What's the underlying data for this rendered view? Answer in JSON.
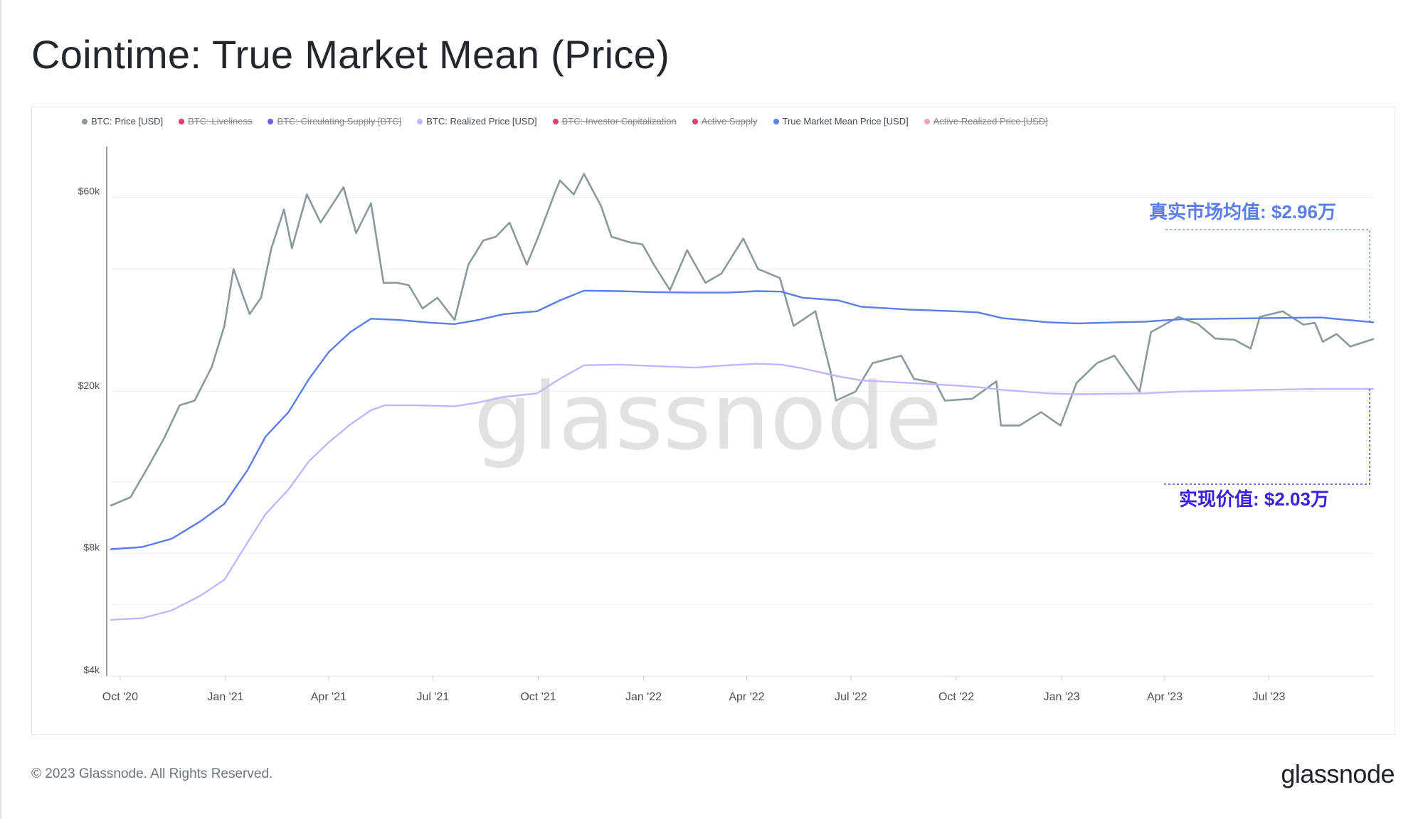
{
  "title": "Cointime: True Market Mean (Price)",
  "footer": {
    "copyright": "© 2023 Glassnode. All Rights Reserved.",
    "logo": "glassnode"
  },
  "watermark": "glassnode",
  "legend": [
    {
      "label": "BTC: Price [USD]",
      "color": "#8a9a9b",
      "active": true
    },
    {
      "label": "BTC: Liveliness",
      "color": "#e0415f",
      "active": false
    },
    {
      "label": "BTC: Circulating Supply [BTC]",
      "color": "#6b5ce7",
      "active": false
    },
    {
      "label": "BTC: Realized Price [USD]",
      "color": "#c4b5fd",
      "active": true
    },
    {
      "label": "BTC: Investor Capitalization",
      "color": "#e0415f",
      "active": false
    },
    {
      "label": "Active Supply",
      "color": "#e0415f",
      "active": false
    },
    {
      "label": "True Market Mean Price [USD]",
      "color": "#5b7ee6",
      "active": true
    },
    {
      "label": "Active Realized Price [USD]",
      "color": "#f4a3b5",
      "active": false
    }
  ],
  "annotations": {
    "tmm": {
      "text": "真实市场均值: $2.96万",
      "color": "#5b7ee6"
    },
    "realized": {
      "text": "实现价值: $2.03万",
      "color": "#3a1fe0"
    }
  },
  "chart_data": {
    "type": "line",
    "y_scale": "log",
    "ylim": [
      4000,
      80000
    ],
    "y_ticks": [
      {
        "value": 60000,
        "label": "$60k"
      },
      {
        "value": 20000,
        "label": "$20k"
      },
      {
        "value": 8000,
        "label": "$8k"
      },
      {
        "value": 4000,
        "label": "$4k"
      }
    ],
    "x_range": [
      "2020-09-23",
      "2023-09-30"
    ],
    "x_ticks": [
      {
        "date": "2020-10-01",
        "label": "Oct '20"
      },
      {
        "date": "2021-01-01",
        "label": "Jan '21"
      },
      {
        "date": "2021-04-01",
        "label": "Apr '21"
      },
      {
        "date": "2021-07-01",
        "label": "Jul '21"
      },
      {
        "date": "2021-10-01",
        "label": "Oct '21"
      },
      {
        "date": "2022-01-01",
        "label": "Jan '22"
      },
      {
        "date": "2022-04-01",
        "label": "Apr '22"
      },
      {
        "date": "2022-07-01",
        "label": "Jul '22"
      },
      {
        "date": "2022-10-01",
        "label": "Oct '22"
      },
      {
        "date": "2023-01-01",
        "label": "Jan '23"
      },
      {
        "date": "2023-04-01",
        "label": "Apr '23"
      },
      {
        "date": "2023-07-01",
        "label": "Jul '23"
      }
    ],
    "series": [
      {
        "name": "BTC: Price [USD]",
        "color": "#8a9a9b",
        "points": [
          [
            "2020-09-23",
            10500
          ],
          [
            "2020-10-10",
            11000
          ],
          [
            "2020-10-25",
            13000
          ],
          [
            "2020-11-08",
            15300
          ],
          [
            "2020-11-22",
            18500
          ],
          [
            "2020-12-05",
            19000
          ],
          [
            "2020-12-20",
            23000
          ],
          [
            "2020-12-31",
            29000
          ],
          [
            "2021-01-08",
            40000
          ],
          [
            "2021-01-22",
            31000
          ],
          [
            "2021-02-01",
            34000
          ],
          [
            "2021-02-10",
            45000
          ],
          [
            "2021-02-21",
            56000
          ],
          [
            "2021-02-28",
            45000
          ],
          [
            "2021-03-13",
            61000
          ],
          [
            "2021-03-25",
            52000
          ],
          [
            "2021-04-14",
            63500
          ],
          [
            "2021-04-25",
            49000
          ],
          [
            "2021-05-08",
            58000
          ],
          [
            "2021-05-19",
            37000
          ],
          [
            "2021-05-31",
            37000
          ],
          [
            "2021-06-10",
            36500
          ],
          [
            "2021-06-22",
            32000
          ],
          [
            "2021-07-05",
            34000
          ],
          [
            "2021-07-20",
            30000
          ],
          [
            "2021-08-01",
            41000
          ],
          [
            "2021-08-14",
            47000
          ],
          [
            "2021-08-25",
            48000
          ],
          [
            "2021-09-06",
            52000
          ],
          [
            "2021-09-21",
            41000
          ],
          [
            "2021-10-01",
            48000
          ],
          [
            "2021-10-15",
            61000
          ],
          [
            "2021-10-20",
            66000
          ],
          [
            "2021-11-01",
            61000
          ],
          [
            "2021-11-10",
            68500
          ],
          [
            "2021-11-25",
            57000
          ],
          [
            "2021-12-04",
            48000
          ],
          [
            "2021-12-20",
            46500
          ],
          [
            "2021-12-31",
            46000
          ],
          [
            "2022-01-10",
            41000
          ],
          [
            "2022-01-24",
            35500
          ],
          [
            "2022-02-08",
            44500
          ],
          [
            "2022-02-24",
            37000
          ],
          [
            "2022-03-10",
            39000
          ],
          [
            "2022-03-29",
            47500
          ],
          [
            "2022-04-11",
            40000
          ],
          [
            "2022-04-30",
            38000
          ],
          [
            "2022-05-12",
            29000
          ],
          [
            "2022-05-31",
            31500
          ],
          [
            "2022-06-13",
            22500
          ],
          [
            "2022-06-18",
            19000
          ],
          [
            "2022-07-05",
            20000
          ],
          [
            "2022-07-20",
            23500
          ],
          [
            "2022-08-14",
            24500
          ],
          [
            "2022-08-25",
            21500
          ],
          [
            "2022-09-13",
            21000
          ],
          [
            "2022-09-21",
            19000
          ],
          [
            "2022-10-15",
            19200
          ],
          [
            "2022-11-05",
            21200
          ],
          [
            "2022-11-09",
            16500
          ],
          [
            "2022-11-25",
            16500
          ],
          [
            "2022-12-14",
            17800
          ],
          [
            "2022-12-31",
            16500
          ],
          [
            "2023-01-14",
            21000
          ],
          [
            "2023-02-01",
            23500
          ],
          [
            "2023-02-16",
            24500
          ],
          [
            "2023-03-10",
            20000
          ],
          [
            "2023-03-20",
            28000
          ],
          [
            "2023-04-13",
            30500
          ],
          [
            "2023-04-30",
            29300
          ],
          [
            "2023-05-15",
            27000
          ],
          [
            "2023-06-01",
            26800
          ],
          [
            "2023-06-15",
            25500
          ],
          [
            "2023-06-23",
            30500
          ],
          [
            "2023-07-13",
            31500
          ],
          [
            "2023-07-31",
            29200
          ],
          [
            "2023-08-10",
            29500
          ],
          [
            "2023-08-17",
            26500
          ],
          [
            "2023-08-29",
            27700
          ],
          [
            "2023-09-10",
            25800
          ],
          [
            "2023-09-30",
            26900
          ]
        ]
      },
      {
        "name": "True Market Mean Price [USD]",
        "color": "#5b7ee6",
        "points": [
          [
            "2020-09-23",
            8200
          ],
          [
            "2020-10-20",
            8300
          ],
          [
            "2020-11-15",
            8700
          ],
          [
            "2020-12-10",
            9600
          ],
          [
            "2020-12-31",
            10600
          ],
          [
            "2021-01-20",
            12800
          ],
          [
            "2021-02-05",
            15500
          ],
          [
            "2021-02-25",
            17800
          ],
          [
            "2021-03-15",
            21500
          ],
          [
            "2021-04-01",
            25000
          ],
          [
            "2021-04-20",
            28000
          ],
          [
            "2021-05-08",
            30200
          ],
          [
            "2021-05-31",
            30000
          ],
          [
            "2021-06-30",
            29500
          ],
          [
            "2021-07-20",
            29300
          ],
          [
            "2021-08-10",
            30000
          ],
          [
            "2021-09-01",
            31000
          ],
          [
            "2021-09-30",
            31500
          ],
          [
            "2021-10-20",
            33500
          ],
          [
            "2021-11-10",
            35400
          ],
          [
            "2021-12-10",
            35300
          ],
          [
            "2022-01-10",
            35100
          ],
          [
            "2022-02-15",
            35000
          ],
          [
            "2022-03-15",
            35000
          ],
          [
            "2022-04-10",
            35300
          ],
          [
            "2022-05-01",
            35200
          ],
          [
            "2022-05-20",
            34000
          ],
          [
            "2022-06-20",
            33500
          ],
          [
            "2022-07-10",
            32300
          ],
          [
            "2022-08-20",
            31800
          ],
          [
            "2022-09-30",
            31500
          ],
          [
            "2022-10-20",
            31300
          ],
          [
            "2022-11-10",
            30300
          ],
          [
            "2022-12-20",
            29600
          ],
          [
            "2023-01-15",
            29400
          ],
          [
            "2023-02-20",
            29600
          ],
          [
            "2023-03-15",
            29700
          ],
          [
            "2023-04-15",
            30100
          ],
          [
            "2023-05-20",
            30200
          ],
          [
            "2023-06-30",
            30300
          ],
          [
            "2023-08-15",
            30400
          ],
          [
            "2023-09-30",
            29600
          ]
        ]
      },
      {
        "name": "BTC: Realized Price [USD]",
        "color": "#c4b5fd",
        "points": [
          [
            "2020-09-23",
            5500
          ],
          [
            "2020-10-20",
            5550
          ],
          [
            "2020-11-15",
            5800
          ],
          [
            "2020-12-10",
            6300
          ],
          [
            "2020-12-31",
            6900
          ],
          [
            "2021-01-20",
            8500
          ],
          [
            "2021-02-05",
            10000
          ],
          [
            "2021-02-25",
            11500
          ],
          [
            "2021-03-15",
            13500
          ],
          [
            "2021-04-01",
            15000
          ],
          [
            "2021-04-20",
            16600
          ],
          [
            "2021-05-08",
            18000
          ],
          [
            "2021-05-20",
            18500
          ],
          [
            "2021-06-15",
            18500
          ],
          [
            "2021-07-20",
            18400
          ],
          [
            "2021-08-10",
            18800
          ],
          [
            "2021-09-01",
            19400
          ],
          [
            "2021-09-30",
            19800
          ],
          [
            "2021-10-20",
            21500
          ],
          [
            "2021-11-10",
            23200
          ],
          [
            "2021-12-10",
            23300
          ],
          [
            "2022-01-10",
            23100
          ],
          [
            "2022-02-15",
            22900
          ],
          [
            "2022-03-15",
            23200
          ],
          [
            "2022-04-10",
            23400
          ],
          [
            "2022-05-01",
            23300
          ],
          [
            "2022-05-20",
            22800
          ],
          [
            "2022-06-20",
            21800
          ],
          [
            "2022-07-10",
            21300
          ],
          [
            "2022-08-20",
            21000
          ],
          [
            "2022-09-30",
            20700
          ],
          [
            "2022-10-20",
            20500
          ],
          [
            "2022-11-10",
            20200
          ],
          [
            "2022-12-20",
            19800
          ],
          [
            "2023-01-15",
            19700
          ],
          [
            "2023-03-15",
            19800
          ],
          [
            "2023-04-15",
            20000
          ],
          [
            "2023-06-30",
            20200
          ],
          [
            "2023-08-15",
            20300
          ],
          [
            "2023-09-30",
            20300
          ]
        ]
      }
    ]
  }
}
